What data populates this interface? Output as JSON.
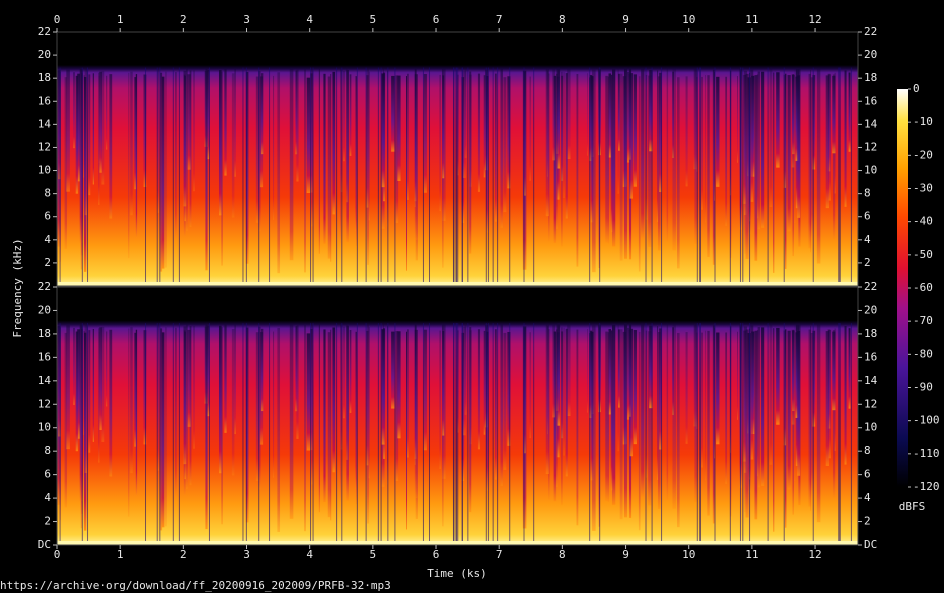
{
  "chart_data": [
    {
      "type": "spectrogram",
      "ylabel": "Frequency (kHz)",
      "xlim": [
        0,
        12.68
      ],
      "ylim": [
        0,
        22
      ],
      "xticks": [
        0,
        1,
        2,
        3,
        4,
        5,
        6,
        7,
        8,
        9,
        10,
        11,
        12
      ],
      "yticks": [
        2,
        4,
        6,
        8,
        10,
        12,
        14,
        16,
        18,
        20,
        22
      ]
    },
    {
      "type": "spectrogram",
      "xlabel": "Time (ks)",
      "xlim": [
        0,
        12.68
      ],
      "ylim": [
        0,
        22
      ],
      "xticks": [
        0,
        1,
        2,
        3,
        4,
        5,
        6,
        7,
        8,
        9,
        10,
        11,
        12
      ],
      "yticks": [
        {
          "value": 0,
          "label": "DC"
        },
        2,
        4,
        6,
        8,
        10,
        12,
        14,
        16,
        18,
        20,
        22
      ]
    }
  ],
  "colorbar": {
    "label": "dBFS",
    "lim": [
      -120,
      0
    ],
    "ticks": [
      0,
      -10,
      -20,
      -30,
      -40,
      -50,
      -60,
      -70,
      -80,
      -90,
      -100,
      -110,
      -120
    ]
  },
  "footer": "https://archive·org/download/ff_20200916_202009/PRFB-32·mp3"
}
